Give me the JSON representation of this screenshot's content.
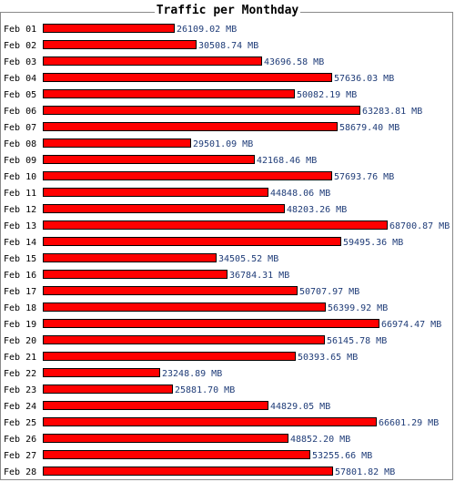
{
  "chart_data": {
    "type": "bar",
    "orientation": "horizontal",
    "title": "Traffic per Monthday",
    "categories": [
      "Feb 01",
      "Feb 02",
      "Feb 03",
      "Feb 04",
      "Feb 05",
      "Feb 06",
      "Feb 07",
      "Feb 08",
      "Feb 09",
      "Feb 10",
      "Feb 11",
      "Feb 12",
      "Feb 13",
      "Feb 14",
      "Feb 15",
      "Feb 16",
      "Feb 17",
      "Feb 18",
      "Feb 19",
      "Feb 20",
      "Feb 21",
      "Feb 22",
      "Feb 23",
      "Feb 24",
      "Feb 25",
      "Feb 26",
      "Feb 27",
      "Feb 28"
    ],
    "values": [
      26109.02,
      30508.74,
      43696.58,
      57636.03,
      50082.19,
      63283.81,
      58679.4,
      29501.09,
      42168.46,
      57693.76,
      44848.06,
      48203.26,
      68700.87,
      59495.36,
      34505.52,
      36784.31,
      50707.97,
      56399.92,
      66974.47,
      56145.78,
      50393.65,
      23248.89,
      25881.7,
      44829.05,
      66601.29,
      48852.2,
      53255.66,
      57801.82
    ],
    "value_labels": [
      "26109.02 MB",
      "30508.74 MB",
      "43696.58 MB",
      "57636.03 MB",
      "50082.19 MB",
      "63283.81 MB",
      "58679.40 MB",
      "29501.09 MB",
      "42168.46 MB",
      "57693.76 MB",
      "44848.06 MB",
      "48203.26 MB",
      "68700.87 MB",
      "59495.36 MB",
      "34505.52 MB",
      "36784.31 MB",
      "50707.97 MB",
      "56399.92 MB",
      "66974.47 MB",
      "56145.78 MB",
      "50393.65 MB",
      "23248.89 MB",
      "25881.70 MB",
      "44829.05 MB",
      "66601.29 MB",
      "48852.20 MB",
      "53255.66 MB",
      "57801.82 MB"
    ],
    "unit": "MB",
    "xlim": [
      0,
      68700.87
    ],
    "grid": false,
    "colors": {
      "bar": "#ff0000",
      "bar_outline": "#000000",
      "value_label": "#1f3c78",
      "frame": "#8a8a8a"
    }
  }
}
